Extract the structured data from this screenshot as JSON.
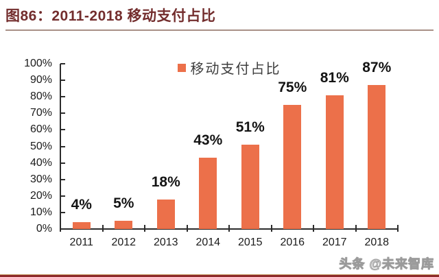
{
  "header": {
    "title": "图86：2011-2018 移动支付占比"
  },
  "colors": {
    "title": "#732D2D",
    "title_rule": "#A89086",
    "bar": "#EC704A",
    "axis": "#2B2B2B",
    "bottom_rule": "#8E2A2A"
  },
  "chart_data": {
    "type": "bar",
    "title": "图86：2011-2018 移动支付占比",
    "legend": [
      "移动支付占比"
    ],
    "legend_position": "top-center",
    "categories": [
      "2011",
      "2012",
      "2013",
      "2014",
      "2015",
      "2016",
      "2017",
      "2018"
    ],
    "values": [
      4,
      5,
      18,
      43,
      51,
      75,
      81,
      87
    ],
    "data_labels": [
      "4%",
      "5%",
      "18%",
      "43%",
      "51%",
      "75%",
      "81%",
      "87%"
    ],
    "yticks": [
      "0%",
      "10%",
      "20%",
      "30%",
      "40%",
      "50%",
      "60%",
      "70%",
      "80%",
      "90%",
      "100%"
    ],
    "ylim": [
      0,
      100
    ],
    "xlabel": "",
    "ylabel": "",
    "grid": false,
    "bar_color": "#EC704A"
  },
  "footer": {
    "watermark": "头条 @未来智库"
  }
}
